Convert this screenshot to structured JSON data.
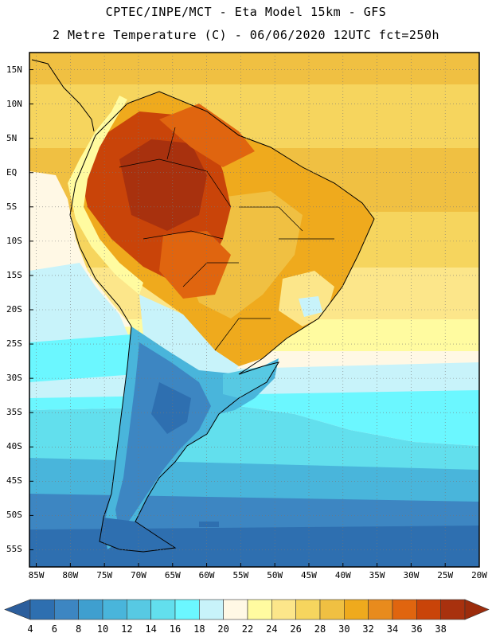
{
  "header": {
    "line1": "CPTEC/INPE/MCT -  Eta Model 15km - GFS",
    "line2": "2 Metre Temperature (C) - 06/06/2020 12UTC fct=250h"
  },
  "axes": {
    "lat_labels": [
      "15N",
      "10N",
      "5N",
      "EQ",
      "5S",
      "10S",
      "15S",
      "20S",
      "25S",
      "30S",
      "35S",
      "40S",
      "45S",
      "50S",
      "55S"
    ],
    "lat_values": [
      15,
      10,
      5,
      0,
      -5,
      -10,
      -15,
      -20,
      -25,
      -30,
      -35,
      -40,
      -45,
      -50,
      -55
    ],
    "lon_labels": [
      "85W",
      "80W",
      "75W",
      "70W",
      "65W",
      "60W",
      "55W",
      "50W",
      "45W",
      "40W",
      "35W",
      "30W",
      "25W",
      "20W"
    ],
    "lon_values": [
      -85,
      -80,
      -75,
      -70,
      -65,
      -60,
      -55,
      -50,
      -45,
      -40,
      -35,
      -30,
      -25,
      -20
    ],
    "lat_range": [
      -57.5,
      17.5
    ],
    "lon_range": [
      -86,
      -20
    ]
  },
  "colorbar": {
    "labels": [
      "4",
      "6",
      "8",
      "10",
      "12",
      "14",
      "16",
      "18",
      "20",
      "22",
      "24",
      "26",
      "28",
      "30",
      "32",
      "34",
      "36",
      "38"
    ],
    "colors": [
      "#2E6FB0",
      "#3D86C2",
      "#3F9FCF",
      "#49B5DB",
      "#57C9E3",
      "#62DFED",
      "#6BF7FF",
      "#C8F3FA",
      "#FFF8E5",
      "#FFFBA0",
      "#FCE68A",
      "#F6D55E",
      "#F0C042",
      "#EFAA1D",
      "#E88B1D",
      "#E0650F",
      "#C94409",
      "#A8310E"
    ],
    "left_arrow": "#2C5E9C",
    "right_arrow": "#9C2C0C"
  },
  "chart_data": {
    "type": "heatmap",
    "title": "2 Metre Temperature (C) - 06/06/2020 12UTC fct=250h",
    "model": "CPTEC/INPE/MCT - Eta Model 15km - GFS",
    "variable": "2 Metre Temperature",
    "units": "C",
    "lat_range": [
      -57.5,
      17.5
    ],
    "lon_range": [
      -86,
      -20
    ],
    "levels": [
      4,
      6,
      8,
      10,
      12,
      14,
      16,
      18,
      20,
      22,
      24,
      26,
      28,
      30,
      32,
      34,
      36,
      38
    ],
    "regions_approx_C": {
      "amazon_basin": 34,
      "central_brazil": 30,
      "northeast_atlantic": 27,
      "equatorial_atlantic": 27,
      "south_atlantic_30S": 21,
      "patagonia": 6,
      "southern_ocean_55S": 6
    }
  }
}
